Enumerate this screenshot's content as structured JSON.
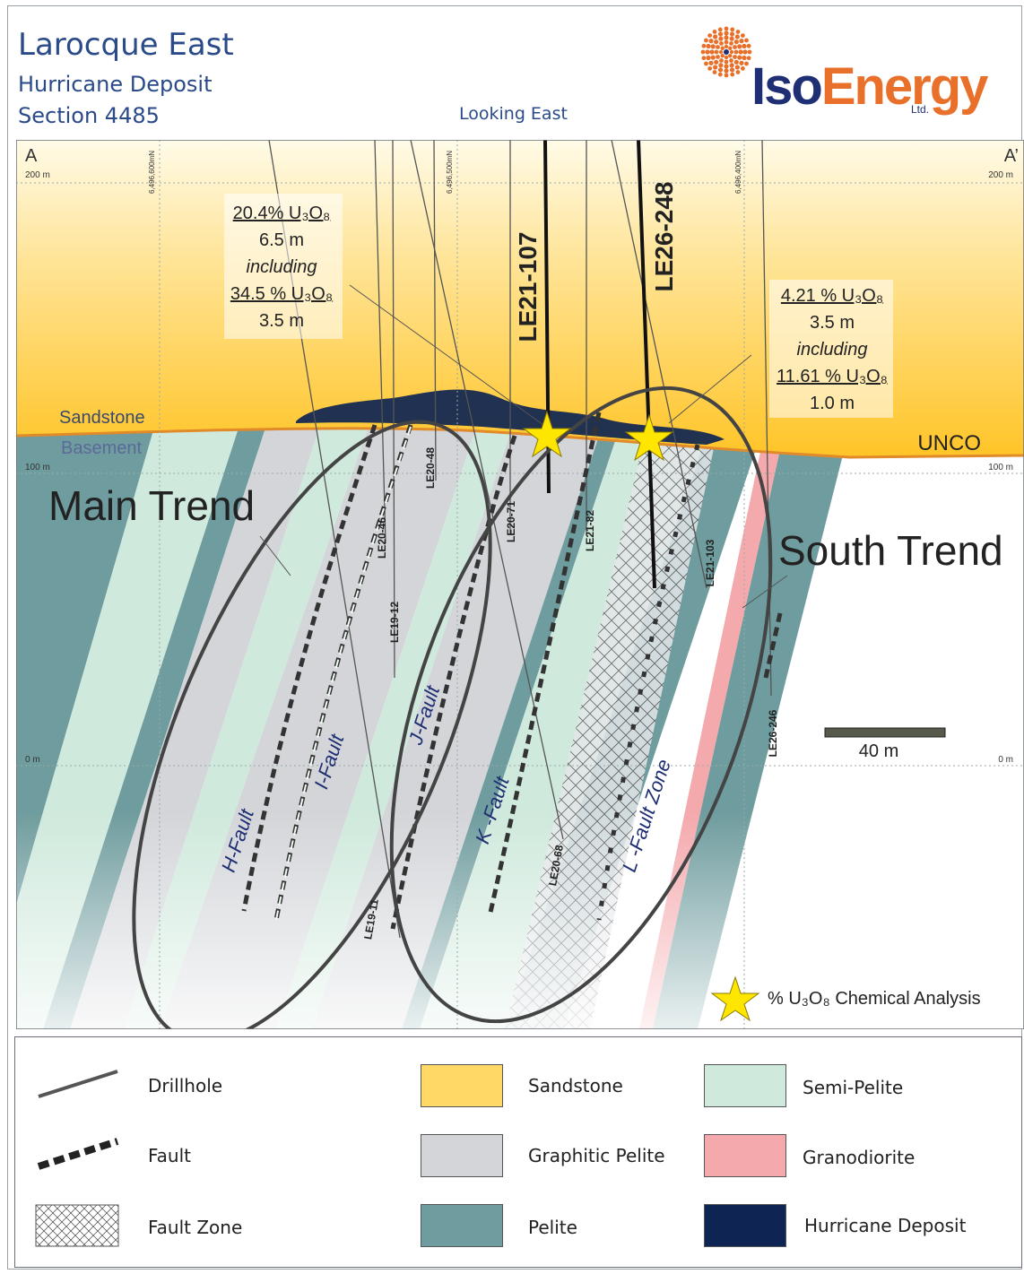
{
  "header": {
    "title": "Larocque East",
    "subtitle": "Hurricane Deposit",
    "section": "Section 4485",
    "view_direction": "Looking East"
  },
  "logo": {
    "iso": "Iso",
    "energy": "Energy",
    "suffix": "Ltd."
  },
  "section_labels": {
    "a_left": "A",
    "a_right": "A’",
    "elev_200_left": "200 m",
    "elev_200_right": "200 m",
    "elev_100_left": "100 m",
    "elev_100_right": "100 m",
    "elev_0_left": "0 m",
    "elev_0_right": "0 m",
    "grid_1": "6,496,600mN",
    "grid_2": "6,496,500mN",
    "grid_3": "6,496,400mN",
    "sandstone": "Sandstone",
    "basement": "Basement",
    "unco": "UNCO",
    "main_trend": "Main Trend",
    "south_trend": "South Trend",
    "scale": "40 m"
  },
  "intercept_left": {
    "l1": "20.4% U₃O₈",
    "l2": "6.5 m",
    "l3": "including",
    "l4": "34.5 % U₃O₈",
    "l5": "3.5 m"
  },
  "intercept_right": {
    "l1": "4.21 % U₃O₈",
    "l2": "3.5 m",
    "l3": "including",
    "l4": "11.61 % U₃O₈",
    "l5": "1.0 m"
  },
  "drillholes": {
    "le21_107": "LE21-107",
    "le26_248": "LE26-248",
    "le20_46": "LE20-46",
    "le20_48": "LE20-48",
    "le19_12": "LE19-12",
    "le20_71": "LE20-71",
    "le21_82": "LE21-82",
    "le21_103": "LE21-103",
    "le26_246": "LE26-246",
    "le19_11": "LE19-11",
    "le20_68": "LE20-68"
  },
  "faults": {
    "h": "H-Fault",
    "i": "I-Fault",
    "j": "J-Fault",
    "k": "K -Fault",
    "l": "L -Fault Zone"
  },
  "star_legend": "% U₃O₈ Chemical Analysis",
  "legend": {
    "drillhole": "Drillhole",
    "fault": "Fault",
    "fault_zone": "Fault Zone",
    "sandstone": "Sandstone",
    "graphitic_pelite": "Graphitic Pelite",
    "pelite": "Pelite",
    "semi_pelite": "Semi-Pelite",
    "granodiorite": "Granodiorite",
    "hurricane_deposit": "Hurricane Deposit"
  },
  "colors": {
    "title_blue": "#2a4a8a",
    "sandstone_top": "#fffbe8",
    "sandstone_bottom": "#ffc21f",
    "graphitic_pelite": "#d3d5d9",
    "pelite": "#6f9c9e",
    "semi_pelite": "#cfe9dc",
    "granodiorite": "#f4a9ad",
    "hurricane_deposit": "#0e2452",
    "unconformity": "#e08a2a",
    "logo_blue": "#1f2f73",
    "logo_orange": "#e8702a",
    "star": "#ffe600"
  }
}
